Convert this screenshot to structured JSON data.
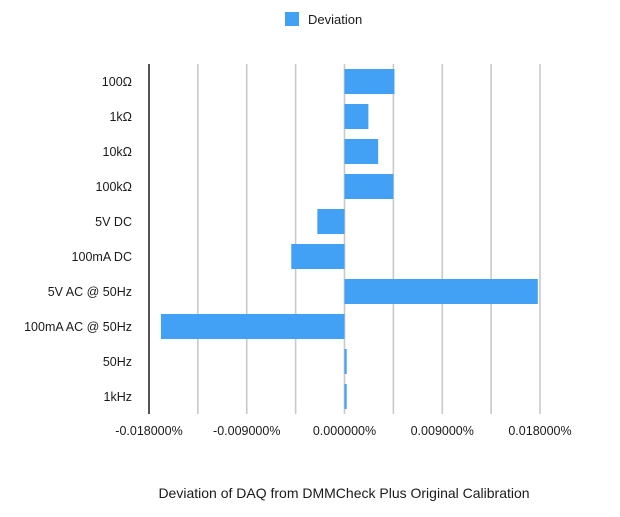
{
  "chart_data": {
    "type": "bar",
    "orientation": "horizontal",
    "title": "Deviation of DAQ from DMMCheck Plus Original Calibration",
    "legend": {
      "position": "top-center",
      "entries": [
        "Deviation"
      ]
    },
    "categories": [
      "100Ω",
      "1kΩ",
      "10kΩ",
      "100kΩ",
      "5V DC",
      "100mA DC",
      "5V AC @ 50Hz",
      "100mA AC @ 50Hz",
      "50Hz",
      "1kHz"
    ],
    "series": [
      {
        "name": "Deviation",
        "color": "#42a0f5",
        "values": [
          0.0046,
          0.0022,
          0.0031,
          0.0045,
          -0.0025,
          -0.0049,
          0.0178,
          -0.0169,
          0.0002,
          0.0002
        ]
      }
    ],
    "xlim": [
      -0.018,
      0.018
    ],
    "xticks": [
      -0.018,
      -0.009,
      0.0,
      0.009,
      0.018
    ],
    "xtick_labels": [
      "-0.018000%",
      "-0.009000%",
      "0.000000%",
      "0.009000%",
      "0.018000%"
    ],
    "unit": "%",
    "grid": true,
    "xlabel": "",
    "ylabel": ""
  }
}
